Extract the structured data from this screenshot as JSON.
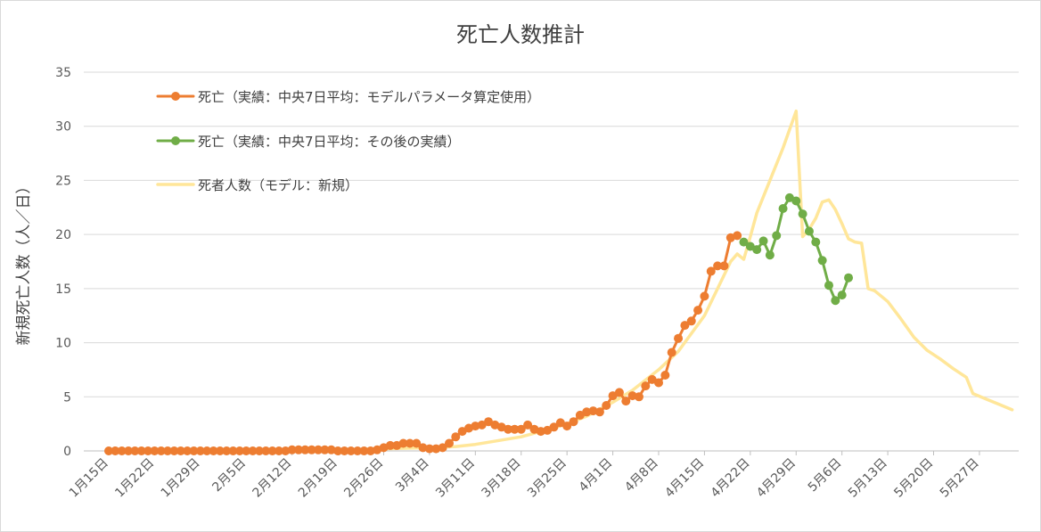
{
  "chart_data": {
    "type": "line",
    "title": "死亡人数推計",
    "xlabel": "",
    "ylabel": "新規死亡人数（人／日）",
    "ylim": [
      0,
      35
    ],
    "yticks": [
      0,
      5,
      10,
      15,
      20,
      25,
      30,
      35
    ],
    "x_start": "2020-01-15",
    "x_end": "2020-06-02",
    "xtick_dates": [
      "2020-01-15",
      "2020-01-22",
      "2020-01-29",
      "2020-02-05",
      "2020-02-12",
      "2020-02-19",
      "2020-02-26",
      "2020-03-04",
      "2020-03-11",
      "2020-03-18",
      "2020-03-25",
      "2020-04-01",
      "2020-04-08",
      "2020-04-15",
      "2020-04-22",
      "2020-04-29",
      "2020-05-06",
      "2020-05-13",
      "2020-05-20",
      "2020-05-27"
    ],
    "xtick_labels": [
      "1月15日",
      "1月22日",
      "1月29日",
      "2月5日",
      "2月12日",
      "2月19日",
      "2月26日",
      "3月4日",
      "3月11日",
      "3月18日",
      "3月25日",
      "4月1日",
      "4月8日",
      "4月15日",
      "4月22日",
      "4月29日",
      "5月6日",
      "5月13日",
      "5月20日",
      "5月27日"
    ],
    "grid": true,
    "legend_position": "top-left",
    "series": [
      {
        "name": "死亡（実績：中央7日平均：モデルパラメータ算定使用）",
        "color": "#ED7D31",
        "marker": true,
        "points": [
          [
            "2020-01-15",
            0
          ],
          [
            "2020-01-16",
            0
          ],
          [
            "2020-01-17",
            0
          ],
          [
            "2020-01-18",
            0
          ],
          [
            "2020-01-19",
            0
          ],
          [
            "2020-01-20",
            0
          ],
          [
            "2020-01-21",
            0
          ],
          [
            "2020-01-22",
            0
          ],
          [
            "2020-01-23",
            0
          ],
          [
            "2020-01-24",
            0
          ],
          [
            "2020-01-25",
            0
          ],
          [
            "2020-01-26",
            0
          ],
          [
            "2020-01-27",
            0
          ],
          [
            "2020-01-28",
            0
          ],
          [
            "2020-01-29",
            0
          ],
          [
            "2020-01-30",
            0
          ],
          [
            "2020-01-31",
            0
          ],
          [
            "2020-02-01",
            0
          ],
          [
            "2020-02-02",
            0
          ],
          [
            "2020-02-03",
            0
          ],
          [
            "2020-02-04",
            0
          ],
          [
            "2020-02-05",
            0
          ],
          [
            "2020-02-06",
            0
          ],
          [
            "2020-02-07",
            0
          ],
          [
            "2020-02-08",
            0
          ],
          [
            "2020-02-09",
            0
          ],
          [
            "2020-02-10",
            0
          ],
          [
            "2020-02-11",
            0
          ],
          [
            "2020-02-12",
            0.1
          ],
          [
            "2020-02-13",
            0.1
          ],
          [
            "2020-02-14",
            0.1
          ],
          [
            "2020-02-15",
            0.1
          ],
          [
            "2020-02-16",
            0.1
          ],
          [
            "2020-02-17",
            0.1
          ],
          [
            "2020-02-18",
            0.1
          ],
          [
            "2020-02-19",
            0
          ],
          [
            "2020-02-20",
            0
          ],
          [
            "2020-02-21",
            0
          ],
          [
            "2020-02-22",
            0
          ],
          [
            "2020-02-23",
            0
          ],
          [
            "2020-02-24",
            0
          ],
          [
            "2020-02-25",
            0.1
          ],
          [
            "2020-02-26",
            0.3
          ],
          [
            "2020-02-27",
            0.5
          ],
          [
            "2020-02-28",
            0.5
          ],
          [
            "2020-02-29",
            0.7
          ],
          [
            "2020-03-01",
            0.7
          ],
          [
            "2020-03-02",
            0.7
          ],
          [
            "2020-03-03",
            0.3
          ],
          [
            "2020-03-04",
            0.2
          ],
          [
            "2020-03-05",
            0.2
          ],
          [
            "2020-03-06",
            0.3
          ],
          [
            "2020-03-07",
            0.7
          ],
          [
            "2020-03-08",
            1.3
          ],
          [
            "2020-03-09",
            1.8
          ],
          [
            "2020-03-10",
            2.1
          ],
          [
            "2020-03-11",
            2.3
          ],
          [
            "2020-03-12",
            2.4
          ],
          [
            "2020-03-13",
            2.7
          ],
          [
            "2020-03-14",
            2.4
          ],
          [
            "2020-03-15",
            2.2
          ],
          [
            "2020-03-16",
            2.0
          ],
          [
            "2020-03-17",
            2.0
          ],
          [
            "2020-03-18",
            2.0
          ],
          [
            "2020-03-19",
            2.4
          ],
          [
            "2020-03-20",
            2.0
          ],
          [
            "2020-03-21",
            1.8
          ],
          [
            "2020-03-22",
            1.9
          ],
          [
            "2020-03-23",
            2.2
          ],
          [
            "2020-03-24",
            2.6
          ],
          [
            "2020-03-25",
            2.3
          ],
          [
            "2020-03-26",
            2.7
          ],
          [
            "2020-03-27",
            3.3
          ],
          [
            "2020-03-28",
            3.6
          ],
          [
            "2020-03-29",
            3.7
          ],
          [
            "2020-03-30",
            3.6
          ],
          [
            "2020-03-31",
            4.2
          ],
          [
            "2020-04-01",
            5.1
          ],
          [
            "2020-04-02",
            5.4
          ],
          [
            "2020-04-03",
            4.6
          ],
          [
            "2020-04-04",
            5.1
          ],
          [
            "2020-04-05",
            5.0
          ],
          [
            "2020-04-06",
            6.0
          ],
          [
            "2020-04-07",
            6.6
          ],
          [
            "2020-04-08",
            6.3
          ],
          [
            "2020-04-09",
            7.0
          ],
          [
            "2020-04-10",
            9.1
          ],
          [
            "2020-04-11",
            10.4
          ],
          [
            "2020-04-12",
            11.6
          ],
          [
            "2020-04-13",
            12.0
          ],
          [
            "2020-04-14",
            13.0
          ],
          [
            "2020-04-15",
            14.3
          ],
          [
            "2020-04-16",
            16.6
          ],
          [
            "2020-04-17",
            17.1
          ],
          [
            "2020-04-18",
            17.1
          ],
          [
            "2020-04-19",
            19.7
          ],
          [
            "2020-04-20",
            19.9
          ]
        ]
      },
      {
        "name": "死亡（実績：中央7日平均：その後の実績）",
        "color": "#70AD47",
        "marker": true,
        "points": [
          [
            "2020-04-21",
            19.3
          ],
          [
            "2020-04-22",
            18.9
          ],
          [
            "2020-04-23",
            18.6
          ],
          [
            "2020-04-24",
            19.4
          ],
          [
            "2020-04-25",
            18.1
          ],
          [
            "2020-04-26",
            19.9
          ],
          [
            "2020-04-27",
            22.4
          ],
          [
            "2020-04-28",
            23.4
          ],
          [
            "2020-04-29",
            23.1
          ],
          [
            "2020-04-30",
            21.9
          ],
          [
            "2020-05-01",
            20.3
          ],
          [
            "2020-05-02",
            19.3
          ],
          [
            "2020-05-03",
            17.6
          ],
          [
            "2020-05-04",
            15.3
          ],
          [
            "2020-05-05",
            13.9
          ],
          [
            "2020-05-06",
            14.4
          ],
          [
            "2020-05-07",
            16.0
          ]
        ]
      },
      {
        "name": "死者人数（モデル：新規）",
        "color": "#FFE699",
        "marker": false,
        "points": [
          [
            "2020-01-29",
            0.1
          ],
          [
            "2020-02-05",
            0.1
          ],
          [
            "2020-02-12",
            0.1
          ],
          [
            "2020-02-19",
            0.1
          ],
          [
            "2020-02-26",
            0.2
          ],
          [
            "2020-03-04",
            0.3
          ],
          [
            "2020-03-08",
            0.4
          ],
          [
            "2020-03-11",
            0.6
          ],
          [
            "2020-03-14",
            0.9
          ],
          [
            "2020-03-18",
            1.3
          ],
          [
            "2020-03-21",
            1.8
          ],
          [
            "2020-03-25",
            2.5
          ],
          [
            "2020-03-28",
            3.2
          ],
          [
            "2020-04-01",
            4.5
          ],
          [
            "2020-04-04",
            5.6
          ],
          [
            "2020-04-08",
            7.5
          ],
          [
            "2020-04-11",
            9.2
          ],
          [
            "2020-04-15",
            12.5
          ],
          [
            "2020-04-17",
            15.0
          ],
          [
            "2020-04-19",
            17.5
          ],
          [
            "2020-04-20",
            18.2
          ],
          [
            "2020-04-21",
            17.7
          ],
          [
            "2020-04-22",
            19.8
          ],
          [
            "2020-04-23",
            22.0
          ],
          [
            "2020-04-25",
            25.0
          ],
          [
            "2020-04-27",
            28.0
          ],
          [
            "2020-04-29",
            31.4
          ],
          [
            "2020-04-30",
            19.8
          ],
          [
            "2020-05-01",
            20.5
          ],
          [
            "2020-05-02",
            21.5
          ],
          [
            "2020-05-03",
            23.0
          ],
          [
            "2020-05-04",
            23.2
          ],
          [
            "2020-05-05",
            22.3
          ],
          [
            "2020-05-06",
            21.0
          ],
          [
            "2020-05-07",
            19.6
          ],
          [
            "2020-05-08",
            19.3
          ],
          [
            "2020-05-09",
            19.2
          ],
          [
            "2020-05-10",
            15.0
          ],
          [
            "2020-05-11",
            14.8
          ],
          [
            "2020-05-13",
            13.8
          ],
          [
            "2020-05-15",
            12.2
          ],
          [
            "2020-05-17",
            10.5
          ],
          [
            "2020-05-19",
            9.3
          ],
          [
            "2020-05-21",
            8.5
          ],
          [
            "2020-05-23",
            7.6
          ],
          [
            "2020-05-25",
            6.8
          ],
          [
            "2020-05-26",
            5.3
          ],
          [
            "2020-05-28",
            4.8
          ],
          [
            "2020-05-30",
            4.3
          ],
          [
            "2020-06-01",
            3.8
          ]
        ]
      }
    ]
  }
}
